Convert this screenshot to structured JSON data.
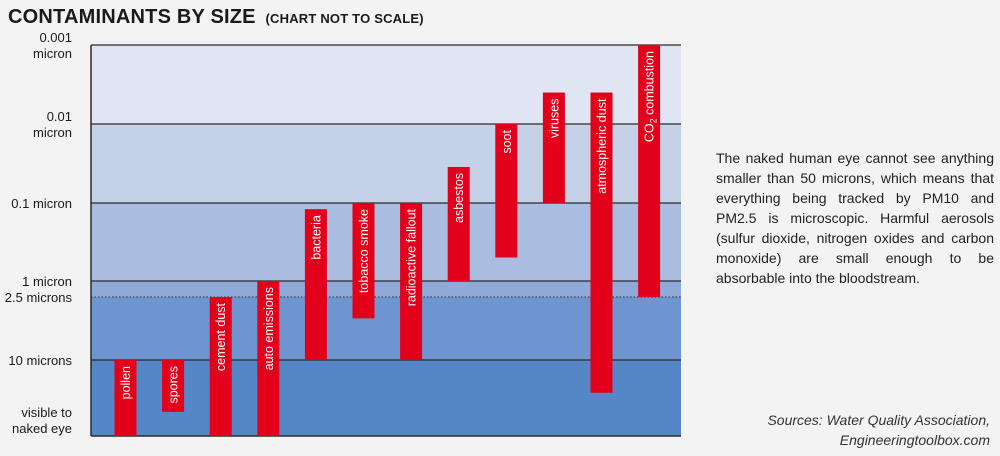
{
  "chart_data": {
    "type": "bar",
    "title": "CONTAMINANTS BY SIZE",
    "subtitle": "(CHART NOT TO SCALE)",
    "y_scale": "log (not to scale)",
    "y_unit": "micron",
    "y_ticks": [
      {
        "label": "0.001\nmicron",
        "value": 0.001
      },
      {
        "label": "0.01\nmicron",
        "value": 0.01
      },
      {
        "label": "0.1 micron",
        "value": 0.1
      },
      {
        "label": "1 micron",
        "value": 1
      },
      {
        "label": "2.5 microns",
        "value": 2.5
      },
      {
        "label": "10 microns",
        "value": 10
      },
      {
        "label": "visible to\nnaked eye",
        "value": 50
      }
    ],
    "bands": [
      "#dfe5f2",
      "#c5d1e7",
      "#aabce0",
      "#8fa9d8",
      "#6e95cf",
      "#5587c7"
    ],
    "bar_color": "#e3001b",
    "bars": [
      {
        "label": "pollen",
        "min": 10,
        "max": 50
      },
      {
        "label": "spores",
        "min": 10,
        "max": 30
      },
      {
        "label": "cement dust",
        "min": 2.5,
        "max": 50
      },
      {
        "label": "auto emissions",
        "min": 1,
        "max": 50
      },
      {
        "label": "bacteria",
        "min": 0.12,
        "max": 10
      },
      {
        "label": "tobacco smoke",
        "min": 0.1,
        "max": 4
      },
      {
        "label": "radioactive fallout",
        "min": 0.1,
        "max": 10
      },
      {
        "label": "asbestos",
        "min": 0.035,
        "max": 1
      },
      {
        "label": "soot",
        "min": 0.01,
        "max": 0.5
      },
      {
        "label": "viruses",
        "min": 0.004,
        "max": 0.1
      },
      {
        "label": "atmospheric dust",
        "min": 0.004,
        "max": 20
      },
      {
        "label": "CO2 combustion",
        "min": 0.001,
        "max": 2.5
      }
    ]
  },
  "note": "The naked human eye cannot see anything smaller than 50 microns, which means that everything being tracked by PM10 and PM2.5 is microscopic. Harmful aerosols (sulfur dioxide, nitrogen oxides and carbon monoxide) are small enough to be absorbable into the bloodstream.",
  "sources": "Sources: Water Quality Association, Engineeringtoolbox.com"
}
